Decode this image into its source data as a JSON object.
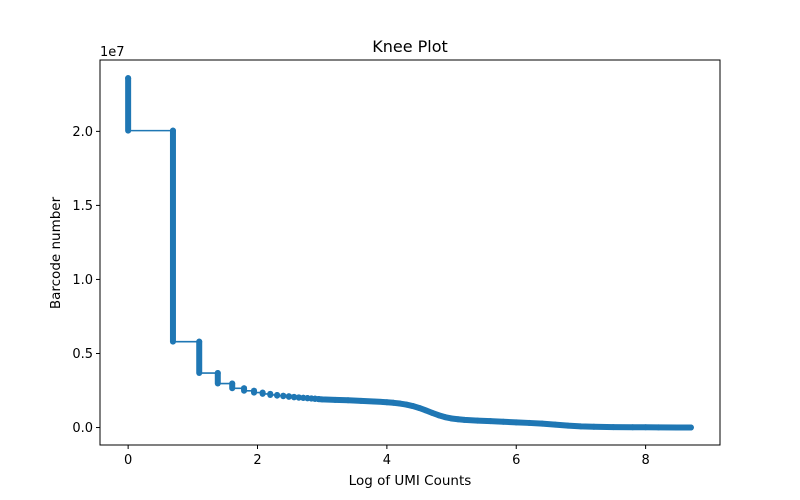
{
  "chart_data": {
    "type": "line",
    "title": "Knee Plot",
    "xlabel": "Log of UMI Counts",
    "ylabel": "Barcode number",
    "y_offset_text": "1e7",
    "xlim": [
      -0.435,
      9.15
    ],
    "ylim": [
      -1180000,
      24820000
    ],
    "xticks": [
      0,
      2,
      4,
      6,
      8
    ],
    "xtick_labels": [
      "0",
      "2",
      "4",
      "6",
      "8"
    ],
    "yticks": [
      0,
      5000000,
      10000000,
      15000000,
      20000000
    ],
    "ytick_labels": [
      "0.0",
      "0.5",
      "1.0",
      "1.5",
      "2.0"
    ],
    "grid": false,
    "marker": "o",
    "series_color": "#1f77b4",
    "series": [
      {
        "values_xy": [
          [
            0.0,
            23600000
          ],
          [
            0.0,
            20050000
          ],
          [
            0.693,
            20050000
          ],
          [
            0.693,
            5800000
          ],
          [
            1.099,
            5800000
          ],
          [
            1.099,
            3680000
          ],
          [
            1.386,
            3680000
          ],
          [
            1.386,
            2970000
          ],
          [
            1.609,
            2970000
          ],
          [
            1.609,
            2650000
          ],
          [
            1.792,
            2650000
          ],
          [
            1.792,
            2480000
          ],
          [
            1.946,
            2480000
          ],
          [
            1.946,
            2360000
          ],
          [
            2.079,
            2360000
          ],
          [
            2.079,
            2270000
          ],
          [
            2.197,
            2270000
          ],
          [
            2.197,
            2200000
          ],
          [
            2.303,
            2200000
          ],
          [
            2.303,
            2150000
          ],
          [
            2.398,
            2150000
          ],
          [
            2.398,
            2110000
          ],
          [
            2.485,
            2110000
          ],
          [
            2.485,
            2070000
          ],
          [
            2.565,
            2070000
          ],
          [
            2.565,
            2040000
          ],
          [
            2.639,
            2040000
          ],
          [
            2.639,
            2010000
          ],
          [
            2.708,
            2010000
          ],
          [
            2.708,
            1990000
          ],
          [
            2.773,
            1990000
          ],
          [
            2.773,
            1970000
          ],
          [
            2.833,
            1970000
          ],
          [
            2.833,
            1950000
          ],
          [
            2.89,
            1950000
          ],
          [
            2.89,
            1930000
          ],
          [
            2.944,
            1930000
          ],
          [
            2.944,
            1915000
          ],
          [
            3.0,
            1900000
          ],
          [
            3.2,
            1870000
          ],
          [
            3.4,
            1840000
          ],
          [
            3.6,
            1800000
          ],
          [
            3.8,
            1760000
          ],
          [
            4.0,
            1710000
          ],
          [
            4.1,
            1670000
          ],
          [
            4.2,
            1620000
          ],
          [
            4.3,
            1550000
          ],
          [
            4.4,
            1450000
          ],
          [
            4.5,
            1320000
          ],
          [
            4.6,
            1160000
          ],
          [
            4.7,
            990000
          ],
          [
            4.8,
            830000
          ],
          [
            4.9,
            700000
          ],
          [
            5.0,
            610000
          ],
          [
            5.1,
            560000
          ],
          [
            5.2,
            520000
          ],
          [
            5.4,
            470000
          ],
          [
            5.6,
            430000
          ],
          [
            5.8,
            390000
          ],
          [
            6.0,
            350000
          ],
          [
            6.2,
            310000
          ],
          [
            6.4,
            260000
          ],
          [
            6.6,
            200000
          ],
          [
            6.8,
            130000
          ],
          [
            7.0,
            80000
          ],
          [
            7.2,
            50000
          ],
          [
            7.5,
            30000
          ],
          [
            7.8,
            20000
          ],
          [
            8.0,
            15000
          ],
          [
            8.2,
            10000
          ],
          [
            8.5,
            5000
          ],
          [
            8.7,
            0
          ]
        ]
      }
    ]
  }
}
